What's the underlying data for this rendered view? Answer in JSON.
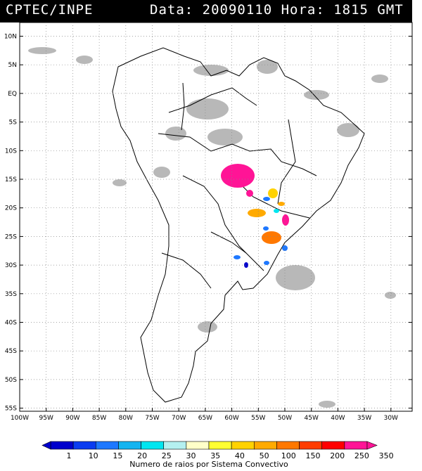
{
  "header": {
    "source": "CPTEC/INPE",
    "datetime": "Data: 20090110 Hora: 1815 GMT"
  },
  "map": {
    "lat_labels": [
      "10N",
      "5N",
      "EQ",
      "5S",
      "10S",
      "15S",
      "20S",
      "25S",
      "30S",
      "35S",
      "40S",
      "45S",
      "50S",
      "55S"
    ],
    "lon_labels": [
      "100W",
      "95W",
      "90W",
      "85W",
      "80W",
      "75W",
      "70W",
      "65W",
      "60W",
      "55W",
      "50W",
      "45W",
      "40W",
      "35W",
      "30W"
    ]
  },
  "colorbar": {
    "ticks": [
      "1",
      "10",
      "15",
      "20",
      "25",
      "30",
      "35",
      "40",
      "50",
      "100",
      "150",
      "200",
      "250",
      "350"
    ],
    "colors": [
      "#0000cc",
      "#0a3cf0",
      "#1e78ff",
      "#14b4f0",
      "#00e6f0",
      "#b4f0f0",
      "#ffffc8",
      "#ffff32",
      "#ffd200",
      "#ffaa00",
      "#ff7800",
      "#ff3c00",
      "#ff0000",
      "#ff1496"
    ],
    "title": "Numero de raios por Sistema Convectivo"
  }
}
